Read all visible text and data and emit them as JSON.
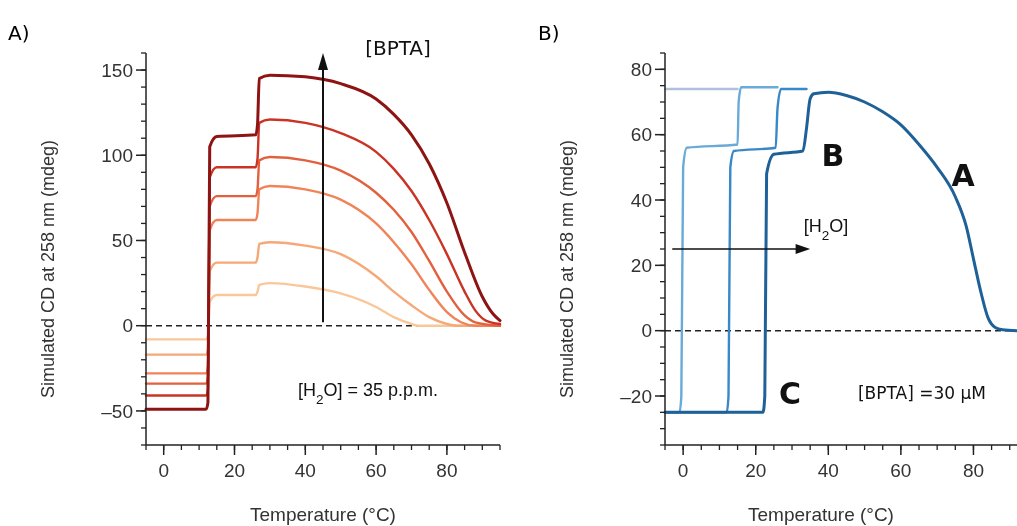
{
  "chart_data": [
    {
      "type": "line",
      "title": "A)",
      "xlabel": "Temperature (°C)",
      "ylabel": "Simulated CD at 258 nm (mdeg)",
      "xlim": [
        -5,
        95
      ],
      "ylim": [
        -70,
        160
      ],
      "xticks": [
        0,
        20,
        40,
        60,
        80
      ],
      "yticks": [
        {
          "value": -50,
          "label": "–50"
        },
        0,
        50,
        100,
        150
      ],
      "grid": false,
      "line_style": "solid",
      "marker": "none",
      "ref_lines": [
        {
          "axis": "y",
          "value": 0,
          "color": "#222222",
          "line_style": "dashed"
        }
      ],
      "annotations": [
        "[BPTA]",
        "[H$_{2}$O] = 35 p.p.m."
      ],
      "series": [
        {
          "color": "#f9c79a",
          "x": [
            -5,
            12,
            12.5,
            13,
            15,
            26,
            26.5,
            27,
            30,
            40,
            50,
            60,
            65,
            70,
            72,
            80,
            95
          ],
          "values": [
            -8,
            -8,
            -6,
            14,
            18,
            18,
            20,
            24,
            25,
            23,
            19,
            11,
            5,
            1,
            0,
            0,
            0
          ]
        },
        {
          "color": "#f5a878",
          "x": [
            -5,
            12,
            12.5,
            13,
            15,
            26,
            26.5,
            27,
            30,
            40,
            50,
            60,
            65,
            70,
            75,
            80,
            83,
            95
          ],
          "values": [
            -17,
            -17,
            -14,
            32,
            37,
            37,
            40,
            48,
            49,
            47,
            42,
            29,
            20,
            12,
            5,
            1,
            0,
            0
          ]
        },
        {
          "color": "#f08358",
          "x": [
            -5,
            12,
            12.5,
            13,
            15,
            26,
            26.5,
            27,
            30,
            40,
            50,
            60,
            65,
            70,
            75,
            80,
            84,
            88,
            95
          ],
          "values": [
            -28,
            -28,
            -24,
            56,
            62,
            62,
            66,
            80,
            82,
            80,
            74,
            60,
            49,
            36,
            21,
            8,
            2,
            0,
            0
          ]
        },
        {
          "color": "#e2603e",
          "x": [
            -5,
            12,
            12.5,
            13,
            15,
            26,
            26.5,
            27,
            30,
            40,
            50,
            60,
            65,
            70,
            75,
            80,
            85,
            88,
            95
          ],
          "values": [
            -34,
            -34,
            -30,
            70,
            76,
            76,
            80,
            97,
            99,
            97,
            91,
            78,
            68,
            55,
            38,
            20,
            6,
            2,
            0
          ]
        },
        {
          "color": "#c93424",
          "x": [
            -5,
            12,
            12.5,
            13,
            15,
            26,
            26.5,
            27,
            30,
            40,
            50,
            60,
            65,
            70,
            75,
            80,
            85,
            88,
            91,
            95
          ],
          "values": [
            -41,
            -41,
            -37,
            87,
            93,
            93,
            98,
            119,
            121,
            119,
            113,
            102,
            92,
            79,
            62,
            42,
            20,
            9,
            3,
            1
          ]
        },
        {
          "color": "#8e1414",
          "x": [
            -5,
            12,
            12.5,
            13,
            15,
            26,
            26.5,
            27,
            30,
            40,
            50,
            60,
            65,
            70,
            75,
            80,
            85,
            90,
            93,
            95
          ],
          "values": [
            -49,
            -49,
            -45,
            105,
            111,
            112,
            118,
            145,
            147,
            146,
            142,
            133,
            124,
            112,
            95,
            72,
            43,
            17,
            7,
            3
          ]
        }
      ]
    },
    {
      "type": "line",
      "title": "B)",
      "xlabel": "Temperature (°C)",
      "ylabel": "Simulated CD at 258 nm (mdeg)",
      "xlim": [
        -5,
        92
      ],
      "ylim": [
        -35,
        85
      ],
      "xticks": [
        0,
        20,
        40,
        60,
        80
      ],
      "yticks": [
        {
          "value": -20,
          "label": "–20"
        },
        0,
        20,
        40,
        60,
        80
      ],
      "grid": false,
      "line_style": "solid",
      "marker": "none",
      "ref_lines": [
        {
          "axis": "y",
          "value": 0,
          "color": "#222222",
          "line_style": "dashed"
        }
      ],
      "annotations": [
        "A",
        "B",
        "C",
        "[H$_{2}$O]",
        "[BPTA] =30 μM"
      ],
      "series": [
        {
          "color": "#b3c0dc",
          "x": [
            -5,
            15
          ],
          "values": [
            74,
            74
          ]
        },
        {
          "color": "#6aaad8",
          "x": [
            -5,
            -1,
            -0.5,
            0,
            1,
            15,
            15.3,
            16,
            26
          ],
          "values": [
            -25,
            -25,
            -20,
            50,
            56,
            57,
            70,
            74.5,
            74.5
          ]
        },
        {
          "color": "#3a88c6",
          "x": [
            -5,
            12,
            12.5,
            13,
            14,
            25.5,
            26,
            27,
            34
          ],
          "values": [
            -25,
            -25,
            -20,
            50,
            55,
            56,
            68,
            74,
            74
          ]
        },
        {
          "color": "#1d6198",
          "x": [
            -5,
            22,
            22.5,
            23,
            25,
            33,
            34,
            35,
            36,
            40,
            45,
            50,
            55,
            60,
            65,
            70,
            75,
            78,
            80,
            82,
            84,
            86,
            88,
            92
          ],
          "values": [
            -25,
            -25,
            -20,
            48,
            54,
            55,
            62,
            71,
            72.5,
            73,
            72,
            70,
            67,
            63,
            57,
            50,
            41,
            32,
            22,
            12,
            4,
            1,
            0.3,
            0
          ]
        }
      ]
    }
  ]
}
